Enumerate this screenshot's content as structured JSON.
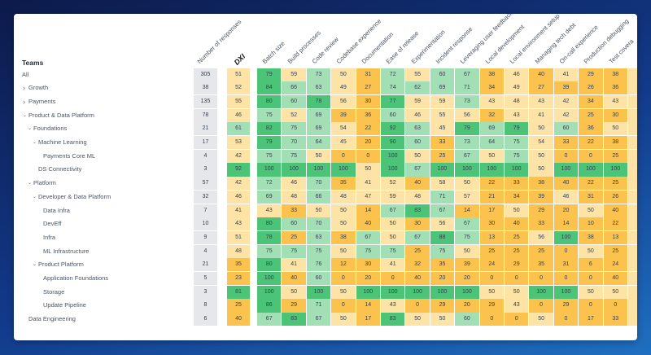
{
  "header": {
    "teams_label": "Teams",
    "responses_label": "Number of responses",
    "dxi_label": "DXI"
  },
  "columns": [
    "Batch size",
    "Build processes",
    "Code review",
    "Codebase experience",
    "Documentation",
    "Ease of release",
    "Experimentation",
    "Incident response",
    "Leveraging user feedback",
    "Local development",
    "Local environment setup",
    "Managing tech debt",
    "On-call experience",
    "Production debugging",
    "Test covera"
  ],
  "colors": {
    "strong_green": "#4cc477",
    "light_green": "#a3dfb5",
    "pale_yellow": "#fde3a5",
    "orange": "#fbc24e",
    "gray": "#e5e7eb"
  },
  "rows": [
    {
      "label": "All",
      "level": 0,
      "chevron": null,
      "responses": "305",
      "dxi": 51,
      "scores": [
        79,
        59,
        73,
        50,
        31,
        72,
        55,
        60,
        67,
        38,
        46,
        40,
        41,
        29,
        38
      ]
    },
    {
      "label": "Growth",
      "level": 1,
      "chevron": "right",
      "responses": "38",
      "dxi": 52,
      "scores": [
        84,
        66,
        63,
        49,
        27,
        74,
        62,
        69,
        71,
        34,
        49,
        27,
        39,
        26,
        36
      ]
    },
    {
      "label": "Payments",
      "level": 1,
      "chevron": "right",
      "responses": "135",
      "dxi": 55,
      "scores": [
        80,
        60,
        78,
        56,
        30,
        77,
        59,
        59,
        73,
        43,
        48,
        43,
        42,
        34,
        43
      ]
    },
    {
      "label": "Product & Data Platform",
      "level": 1,
      "chevron": "down",
      "responses": "78",
      "dxi": 46,
      "scores": [
        75,
        52,
        69,
        39,
        36,
        60,
        46,
        55,
        56,
        32,
        43,
        41,
        42,
        25,
        30
      ]
    },
    {
      "label": "Foundations",
      "level": 2,
      "chevron": "down",
      "responses": "21",
      "dxi": 61,
      "scores": [
        82,
        75,
        69,
        54,
        22,
        92,
        63,
        45,
        79,
        69,
        79,
        50,
        60,
        36,
        50
      ]
    },
    {
      "label": "Machine Learning",
      "level": 3,
      "chevron": "down",
      "responses": "17",
      "dxi": 53,
      "scores": [
        79,
        70,
        64,
        45,
        20,
        90,
        60,
        33,
        73,
        64,
        75,
        54,
        33,
        22,
        38
      ]
    },
    {
      "label": "Payments Core ML",
      "level": 4,
      "chevron": null,
      "responses": "4",
      "dxi": 42,
      "scores": [
        75,
        75,
        50,
        0,
        0,
        100,
        50,
        25,
        67,
        50,
        75,
        50,
        0,
        0,
        25
      ]
    },
    {
      "label": "DS Connectivity",
      "level": 3,
      "chevron": null,
      "responses": "3",
      "dxi": 92,
      "scores": [
        100,
        100,
        100,
        100,
        50,
        100,
        67,
        100,
        100,
        100,
        100,
        50,
        100,
        100,
        100
      ]
    },
    {
      "label": "Platform",
      "level": 2,
      "chevron": "down",
      "responses": "57",
      "dxi": 42,
      "scores": [
        72,
        46,
        70,
        35,
        41,
        52,
        40,
        58,
        50,
        22,
        33,
        38,
        40,
        22,
        25
      ]
    },
    {
      "label": "Developer & Data Platform",
      "level": 3,
      "chevron": "down",
      "responses": "32",
      "dxi": 46,
      "scores": [
        69,
        48,
        66,
        48,
        47,
        59,
        48,
        71,
        57,
        21,
        34,
        39,
        46,
        31,
        26
      ]
    },
    {
      "label": "Data Infra",
      "level": 4,
      "chevron": null,
      "responses": "7",
      "dxi": 41,
      "scores": [
        43,
        33,
        50,
        50,
        14,
        67,
        83,
        67,
        14,
        17,
        50,
        29,
        20,
        50,
        40
      ]
    },
    {
      "label": "DevEff",
      "level": 4,
      "chevron": null,
      "responses": "10",
      "dxi": 43,
      "scores": [
        80,
        60,
        70,
        50,
        40,
        50,
        30,
        56,
        67,
        30,
        40,
        33,
        14,
        10,
        22
      ]
    },
    {
      "label": "Infra",
      "level": 4,
      "chevron": null,
      "responses": "9",
      "dxi": 51,
      "scores": [
        78,
        25,
        63,
        38,
        67,
        50,
        67,
        88,
        75,
        13,
        25,
        56,
        100,
        38,
        13
      ]
    },
    {
      "label": "ML Infrastructure",
      "level": 4,
      "chevron": null,
      "responses": "4",
      "dxi": 48,
      "scores": [
        75,
        75,
        75,
        50,
        75,
        75,
        25,
        75,
        50,
        25,
        25,
        25,
        0,
        50,
        25
      ]
    },
    {
      "label": "Product Platform",
      "level": 3,
      "chevron": "down",
      "responses": "21",
      "dxi": 35,
      "scores": [
        80,
        41,
        76,
        12,
        30,
        41,
        32,
        35,
        39,
        24,
        29,
        35,
        31,
        6,
        24
      ]
    },
    {
      "label": "Application Foundations",
      "level": 4,
      "chevron": null,
      "responses": "5",
      "dxi": 23,
      "scores": [
        100,
        40,
        60,
        0,
        20,
        0,
        40,
        20,
        20,
        0,
        0,
        0,
        0,
        0,
        40
      ]
    },
    {
      "label": "Storage",
      "level": 4,
      "chevron": null,
      "responses": "3",
      "dxi": 81,
      "scores": [
        100,
        50,
        100,
        50,
        100,
        100,
        100,
        100,
        100,
        50,
        50,
        100,
        100,
        50,
        50
      ]
    },
    {
      "label": "Update Pipeline",
      "level": 4,
      "chevron": null,
      "responses": "8",
      "dxi": 25,
      "scores": [
        86,
        29,
        71,
        0,
        14,
        43,
        0,
        29,
        20,
        29,
        43,
        0,
        29,
        0,
        0
      ]
    },
    {
      "label": "Data Engineering",
      "level": 1,
      "chevron": null,
      "responses": "6",
      "dxi": 40,
      "scores": [
        67,
        83,
        67,
        50,
        17,
        83,
        50,
        50,
        60,
        0,
        0,
        50,
        0,
        17,
        33
      ]
    }
  ]
}
